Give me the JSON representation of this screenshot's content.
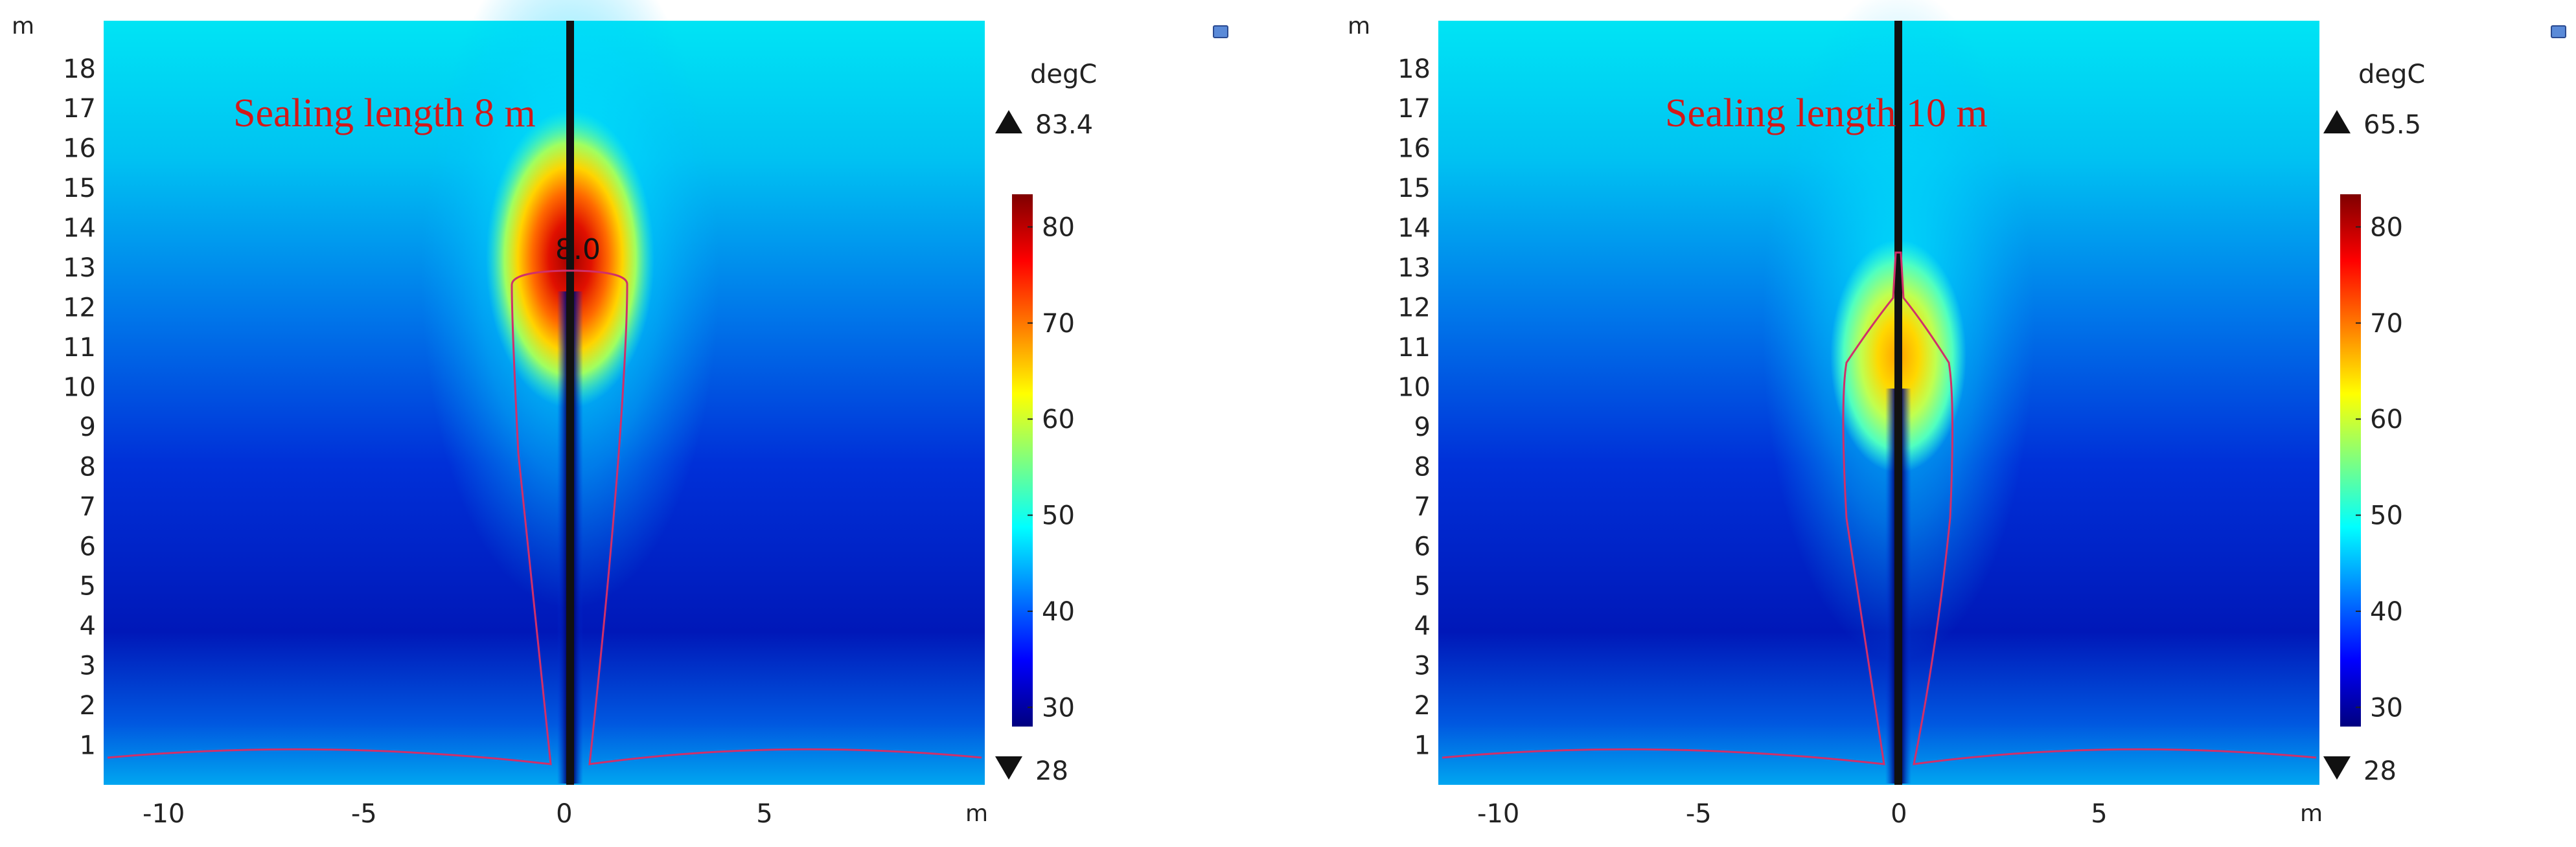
{
  "chart_data": [
    {
      "type": "heatmap",
      "annotation": "Sealing length 8 m",
      "contour_label": "8.0",
      "x_unit": "m",
      "y_unit": "m",
      "xlim": [
        -11.5,
        10.5
      ],
      "ylim": [
        0,
        19.2
      ],
      "x_ticks": [
        -10,
        -5,
        0,
        5
      ],
      "y_ticks": [
        1,
        2,
        3,
        4,
        5,
        6,
        7,
        8,
        9,
        10,
        11,
        12,
        13,
        14,
        15,
        16,
        17,
        18
      ],
      "sealing_length": 8,
      "hotspot_y": 12.8,
      "colorbar": {
        "unit": "degC",
        "max_label": "83.4",
        "min_label": "28",
        "ticks": [
          30,
          40,
          50,
          60,
          70,
          80
        ],
        "range": [
          28,
          83.4
        ],
        "colors": [
          "#00007f",
          "#0000ff",
          "#007fff",
          "#00ffff",
          "#7fff7f",
          "#ffff00",
          "#ff7f00",
          "#ff0000",
          "#7f0000"
        ]
      }
    },
    {
      "type": "heatmap",
      "annotation": "Sealing length 10 m",
      "contour_label": "",
      "x_unit": "m",
      "y_unit": "m",
      "xlim": [
        -11.5,
        10.5
      ],
      "ylim": [
        0,
        19.2
      ],
      "x_ticks": [
        -10,
        -5,
        0,
        5
      ],
      "y_ticks": [
        1,
        2,
        3,
        4,
        5,
        6,
        7,
        8,
        9,
        10,
        11,
        12,
        13,
        14,
        15,
        16,
        17,
        18
      ],
      "sealing_length": 10,
      "hotspot_y": 10.8,
      "colorbar": {
        "unit": "degC",
        "max_label": "65.5",
        "min_label": "28",
        "ticks": [
          30,
          40,
          50,
          60,
          70,
          80
        ],
        "range": [
          28,
          83.4
        ],
        "colors": [
          "#00007f",
          "#0000ff",
          "#007fff",
          "#00ffff",
          "#7fff7f",
          "#ffff00",
          "#ff7f00",
          "#ff0000",
          "#7f0000"
        ]
      }
    }
  ]
}
